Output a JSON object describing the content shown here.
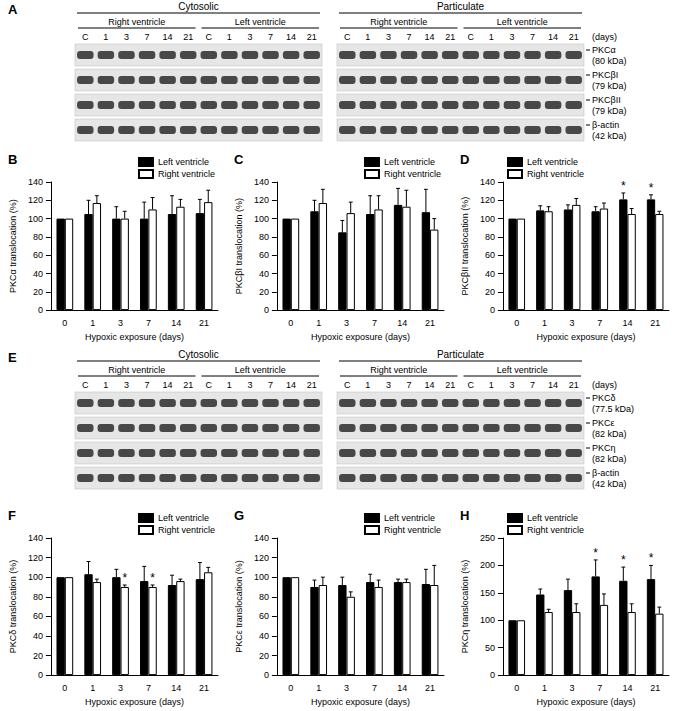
{
  "blots": [
    {
      "panel": "A",
      "fractions": [
        "Cytosolic",
        "Particulate"
      ],
      "groups": [
        "Right ventricle",
        "Left ventricle"
      ],
      "lanes": [
        "C",
        "1",
        "3",
        "7",
        "14",
        "21"
      ],
      "lane_unit": "(days)",
      "rows": [
        {
          "protein": "PKCα",
          "mw": "(80 kDa)"
        },
        {
          "protein": "PKCβI",
          "mw": "(79 kDa)"
        },
        {
          "protein": "PKCβII",
          "mw": "(79 kDa)"
        },
        {
          "protein": "β-actin",
          "mw": "(42 kDa)"
        }
      ]
    },
    {
      "panel": "E",
      "fractions": [
        "Cytosolic",
        "Particulate"
      ],
      "groups": [
        "Right ventricle",
        "Left ventricle"
      ],
      "lanes": [
        "C",
        "1",
        "3",
        "7",
        "14",
        "21"
      ],
      "lane_unit": "(days)",
      "rows": [
        {
          "protein": "PKCδ",
          "mw": "(77.5 kDa)"
        },
        {
          "protein": "PKCε",
          "mw": "(82 kDa)"
        },
        {
          "protein": "PKCη",
          "mw": "(82 kDa)"
        },
        {
          "protein": "β-actin",
          "mw": "(42 kDa)"
        }
      ]
    }
  ],
  "chart_data": [
    {
      "panel": "B",
      "type": "bar",
      "categories": [
        "0",
        "1",
        "3",
        "7",
        "14",
        "21"
      ],
      "x_label": "Hypoxic exposure (days)",
      "y_label": "PKCα translocation (%)",
      "ylim": [
        0,
        140
      ],
      "yticks": [
        0,
        20,
        40,
        60,
        80,
        100,
        120,
        140
      ],
      "grid": false,
      "legend": "upper right",
      "series": [
        {
          "name": "Left ventricle",
          "color": "#000000",
          "values": [
            100,
            105,
            100,
            100,
            105,
            106
          ],
          "errors": [
            0,
            15,
            13,
            18,
            20,
            15
          ],
          "annotations": [
            null,
            null,
            null,
            null,
            null,
            null
          ]
        },
        {
          "name": "Right ventricle",
          "color": "#ffffff",
          "values": [
            100,
            117,
            100,
            110,
            113,
            118
          ],
          "errors": [
            0,
            8,
            8,
            13,
            8,
            13
          ],
          "annotations": [
            null,
            null,
            null,
            null,
            null,
            null
          ]
        }
      ]
    },
    {
      "panel": "C",
      "type": "bar",
      "categories": [
        "0",
        "1",
        "3",
        "7",
        "14",
        "21"
      ],
      "x_label": "Hypoxic exposure (days)",
      "y_label": "PKCβI translocation (%)",
      "ylim": [
        0,
        140
      ],
      "yticks": [
        0,
        20,
        40,
        60,
        80,
        100,
        120,
        140
      ],
      "grid": false,
      "legend": "upper right",
      "series": [
        {
          "name": "Left ventricle",
          "color": "#000000",
          "values": [
            100,
            108,
            85,
            105,
            115,
            107
          ],
          "errors": [
            0,
            12,
            13,
            20,
            18,
            25
          ],
          "annotations": [
            null,
            null,
            null,
            null,
            null,
            null
          ]
        },
        {
          "name": "Right ventricle",
          "color": "#ffffff",
          "values": [
            100,
            117,
            106,
            110,
            113,
            88
          ],
          "errors": [
            0,
            15,
            12,
            15,
            18,
            12
          ],
          "annotations": [
            null,
            null,
            null,
            null,
            null,
            null
          ]
        }
      ]
    },
    {
      "panel": "D",
      "type": "bar",
      "categories": [
        "0",
        "1",
        "3",
        "7",
        "14",
        "21"
      ],
      "x_label": "Hypoxic exposure (days)",
      "y_label": "PKCβII translocation (%)",
      "ylim": [
        0,
        140
      ],
      "yticks": [
        0,
        20,
        40,
        60,
        80,
        100,
        120,
        140
      ],
      "grid": false,
      "legend": "upper left",
      "series": [
        {
          "name": "Left ventricle",
          "color": "#000000",
          "values": [
            100,
            109,
            110,
            108,
            121,
            121
          ],
          "errors": [
            0,
            5,
            5,
            5,
            7,
            5
          ],
          "annotations": [
            null,
            null,
            null,
            null,
            "*",
            "*"
          ]
        },
        {
          "name": "Right ventricle",
          "color": "#ffffff",
          "values": [
            100,
            108,
            115,
            111,
            105,
            105
          ],
          "errors": [
            0,
            5,
            7,
            6,
            6,
            3
          ],
          "annotations": [
            null,
            null,
            null,
            null,
            null,
            null
          ]
        }
      ]
    },
    {
      "panel": "F",
      "type": "bar",
      "categories": [
        "0",
        "1",
        "3",
        "7",
        "14",
        "21"
      ],
      "x_label": "Hypoxic exposure (days)",
      "y_label": "PKCδ translocation (%)",
      "ylim": [
        0,
        140
      ],
      "yticks": [
        0,
        20,
        40,
        60,
        80,
        100,
        120,
        140
      ],
      "grid": false,
      "legend": "upper right",
      "series": [
        {
          "name": "Left ventricle",
          "color": "#000000",
          "values": [
            100,
            103,
            100,
            96,
            92,
            98
          ],
          "errors": [
            0,
            13,
            8,
            15,
            10,
            17
          ],
          "annotations": [
            null,
            null,
            null,
            null,
            null,
            null
          ]
        },
        {
          "name": "Right ventricle",
          "color": "#ffffff",
          "values": [
            100,
            95,
            90,
            90,
            96,
            105
          ],
          "errors": [
            0,
            3,
            2,
            2,
            2,
            5
          ],
          "annotations": [
            null,
            null,
            "*",
            "*",
            null,
            null
          ]
        }
      ]
    },
    {
      "panel": "G",
      "type": "bar",
      "categories": [
        "0",
        "1",
        "3",
        "7",
        "14",
        "21"
      ],
      "x_label": "Hypoxic exposure (days)",
      "y_label": "PKCε translocation (%)",
      "ylim": [
        0,
        140
      ],
      "yticks": [
        0,
        20,
        40,
        60,
        80,
        100,
        120,
        140
      ],
      "grid": false,
      "legend": "upper right",
      "series": [
        {
          "name": "Left ventricle",
          "color": "#000000",
          "values": [
            100,
            90,
            92,
            95,
            95,
            93
          ],
          "errors": [
            0,
            7,
            8,
            8,
            3,
            15
          ],
          "annotations": [
            null,
            null,
            null,
            null,
            null,
            null
          ]
        },
        {
          "name": "Right ventricle",
          "color": "#ffffff",
          "values": [
            100,
            92,
            80,
            90,
            95,
            92
          ],
          "errors": [
            0,
            8,
            5,
            7,
            3,
            20
          ],
          "annotations": [
            null,
            null,
            null,
            null,
            null,
            null
          ]
        }
      ]
    },
    {
      "panel": "H",
      "type": "bar",
      "categories": [
        "0",
        "1",
        "3",
        "7",
        "14",
        "21"
      ],
      "x_label": "Hypoxic exposure (days)",
      "y_label": "PKCη translocation (%)",
      "ylim": [
        0,
        250
      ],
      "yticks": [
        0,
        50,
        100,
        150,
        200,
        250
      ],
      "grid": false,
      "legend": "upper left",
      "series": [
        {
          "name": "Left ventricle",
          "color": "#000000",
          "values": [
            100,
            147,
            155,
            180,
            172,
            175
          ],
          "errors": [
            0,
            10,
            20,
            30,
            25,
            25
          ],
          "annotations": [
            null,
            null,
            null,
            "*",
            "*",
            "*"
          ]
        },
        {
          "name": "Right ventricle",
          "color": "#ffffff",
          "values": [
            100,
            115,
            115,
            128,
            115,
            112
          ],
          "errors": [
            0,
            5,
            15,
            20,
            15,
            12
          ],
          "annotations": [
            null,
            null,
            null,
            null,
            null,
            null
          ]
        }
      ]
    }
  ]
}
